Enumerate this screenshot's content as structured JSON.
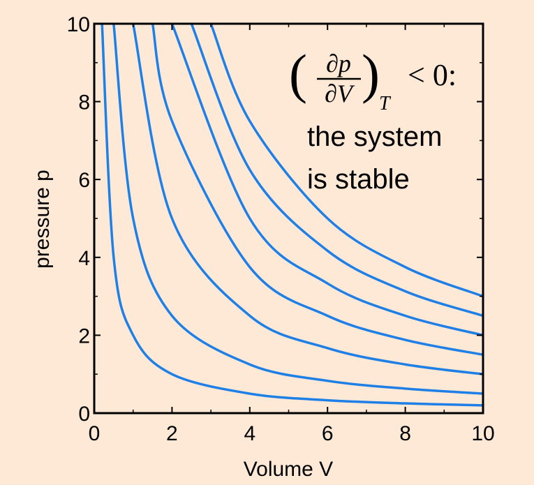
{
  "chart_data": {
    "type": "line",
    "title": "",
    "xlabel": "Volume V",
    "ylabel": "pressure p",
    "xlim": [
      0,
      10
    ],
    "ylim": [
      0,
      10
    ],
    "xticks": [
      "0",
      "2",
      "4",
      "6",
      "8",
      "10"
    ],
    "yticks": [
      "0",
      "2",
      "4",
      "6",
      "8",
      "10"
    ],
    "grid": false,
    "line_color": "#1e7fe6",
    "background": "#fde9d6",
    "series": [
      {
        "points": [
          [
            0.2,
            10
          ],
          [
            0.5,
            4
          ],
          [
            1,
            2
          ],
          [
            2,
            1
          ],
          [
            4,
            0.5
          ],
          [
            6,
            0.33
          ],
          [
            8,
            0.25
          ],
          [
            10,
            0.2
          ]
        ]
      },
      {
        "points": [
          [
            0.5,
            10
          ],
          [
            1,
            5
          ],
          [
            2,
            2.5
          ],
          [
            4,
            1.25
          ],
          [
            6,
            0.83
          ],
          [
            8,
            0.63
          ],
          [
            10,
            0.5
          ]
        ]
      },
      {
        "points": [
          [
            1,
            10
          ],
          [
            2,
            5
          ],
          [
            4,
            2.5
          ],
          [
            6,
            1.67
          ],
          [
            8,
            1.25
          ],
          [
            10,
            1
          ]
        ]
      },
      {
        "points": [
          [
            1.5,
            10
          ],
          [
            2,
            7.5
          ],
          [
            4,
            3.75
          ],
          [
            6,
            2.5
          ],
          [
            8,
            1.88
          ],
          [
            10,
            1.5
          ]
        ]
      },
      {
        "points": [
          [
            2,
            10
          ],
          [
            4,
            5
          ],
          [
            6,
            3.33
          ],
          [
            8,
            2.5
          ],
          [
            10,
            2
          ]
        ]
      },
      {
        "points": [
          [
            2.5,
            10
          ],
          [
            4,
            6.25
          ],
          [
            6,
            4.17
          ],
          [
            8,
            3.13
          ],
          [
            10,
            2.5
          ]
        ]
      },
      {
        "points": [
          [
            3,
            10
          ],
          [
            4,
            7.5
          ],
          [
            6,
            5
          ],
          [
            8,
            3.75
          ],
          [
            10,
            3
          ]
        ]
      }
    ],
    "annotation": {
      "math_numerator": "∂p",
      "math_denominator": "∂V",
      "math_subscript": "T",
      "math_relation": "< 0:",
      "line1": "the system",
      "line2": "is stable"
    }
  }
}
